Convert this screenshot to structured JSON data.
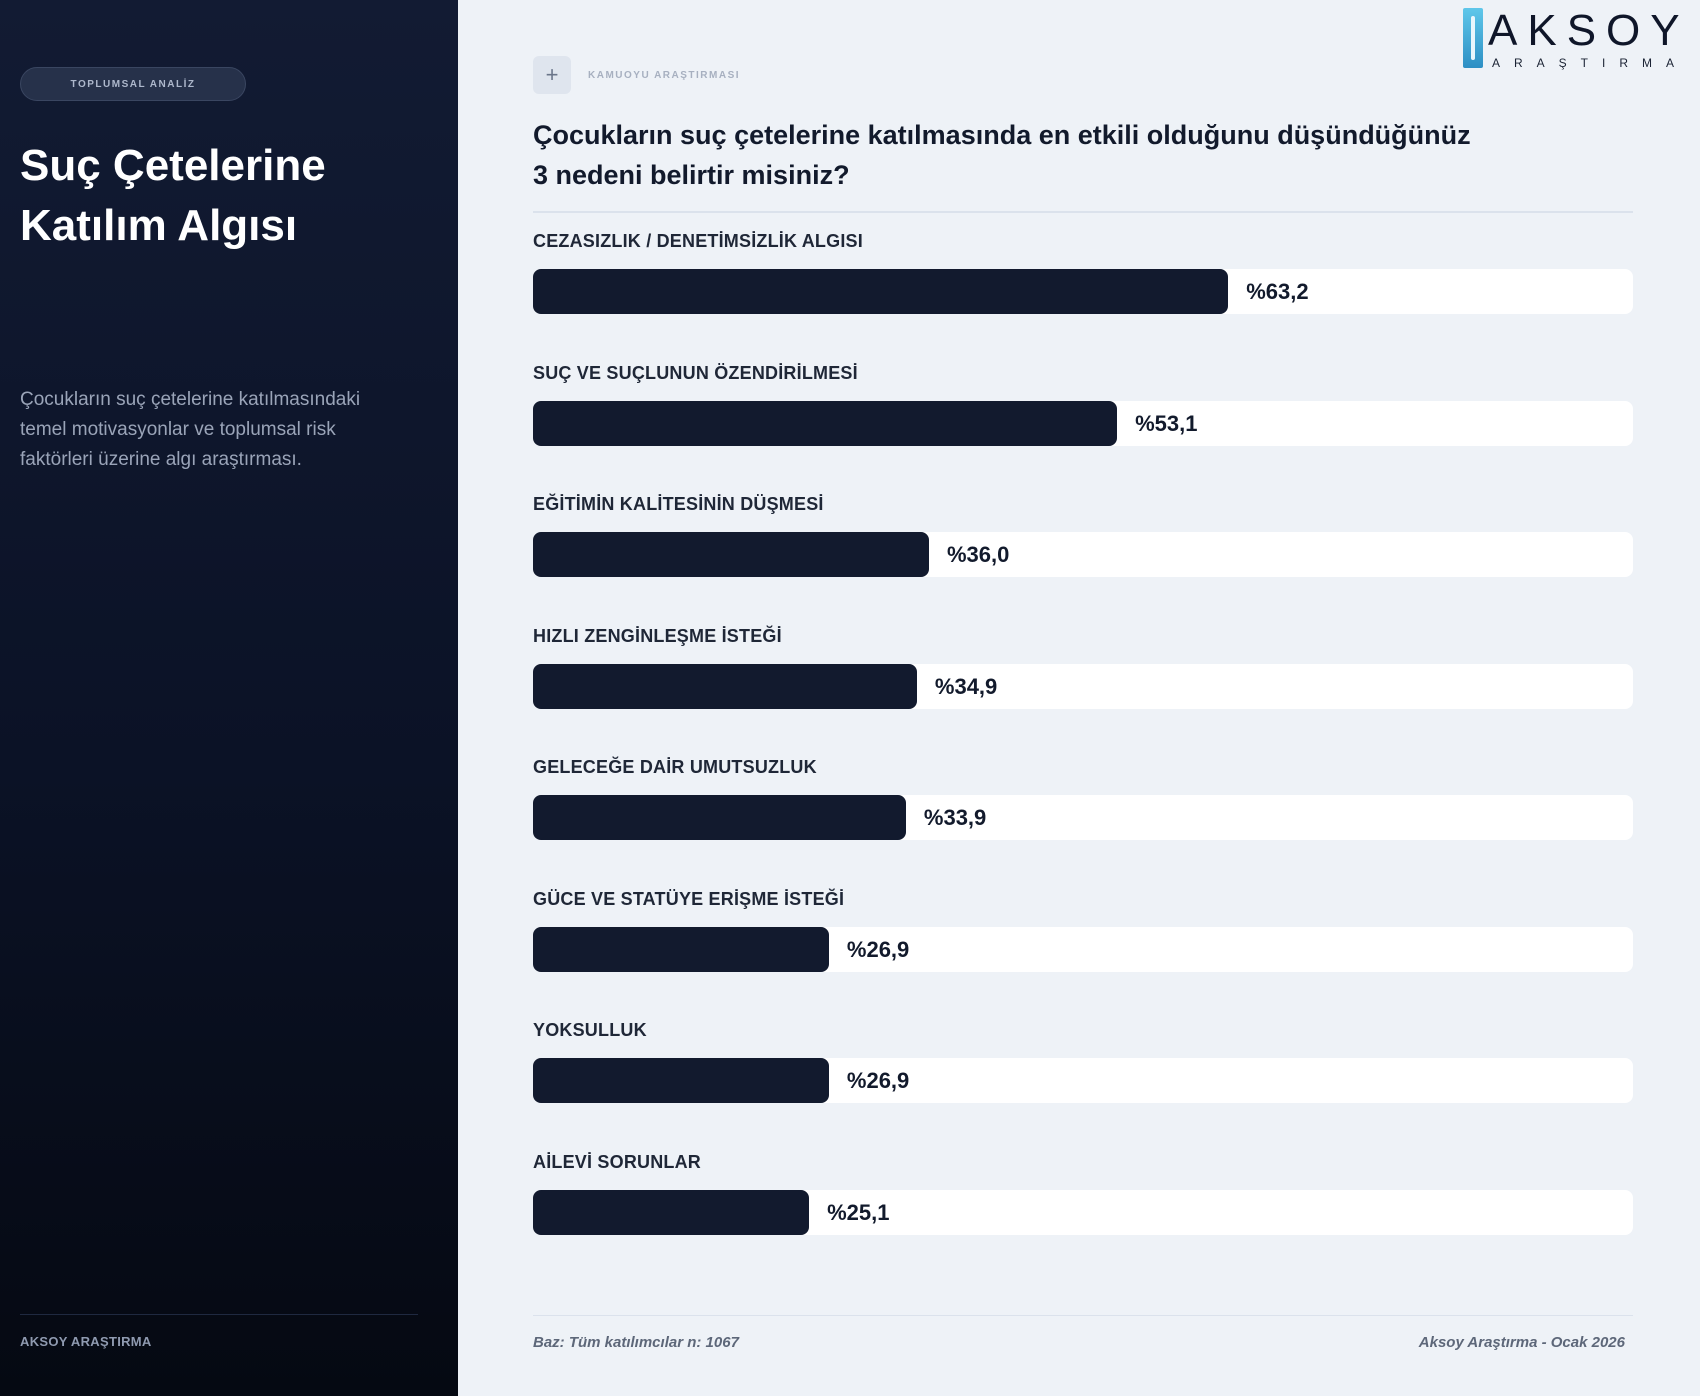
{
  "sidebar": {
    "tag": "TOPLUMSAL ANALİZ",
    "title": "Suç Çetelerine Katılım Algısı",
    "description": "Çocukların suç çetelerine katılmasındaki temel motivasyonlar ve toplumsal risk faktörleri üzerine algı araştırması.",
    "footer_brand": "AKSOY ARAŞTIRMA"
  },
  "header": {
    "logo_name": "AKSOY",
    "logo_sub": "ARAŞTIRMA",
    "kicker": "KAMUOYU ARAŞTIRMASI",
    "kicker_icon": "plus-icon",
    "question": "Çocukların suç çetelerine katılmasında en etkili olduğunu düşündüğünüz 3 nedeni belirtir misiniz?"
  },
  "chart_data": {
    "type": "bar",
    "orientation": "horizontal",
    "categories": [
      "CEZASIZLIK / DENETİMSİZLİK ALGISI",
      "SUÇ VE SUÇLUNUN ÖZENDİRİLMESİ",
      "EĞİTİMİN KALİTESİNİN DÜŞMESİ",
      "HIZLI ZENGİNLEŞME İSTEĞİ",
      "GELECEĞE DAİR UMUTSUZLUK",
      "GÜCE VE STATÜYE ERİŞME İSTEĞİ",
      "YOKSULLUK",
      "AİLEVİ SORUNLAR"
    ],
    "values": [
      63.2,
      53.1,
      36.0,
      34.9,
      33.9,
      26.9,
      26.9,
      25.1
    ],
    "value_labels": [
      "%63,2",
      "%53,1",
      "%36,0",
      "%34,9",
      "%33,9",
      "%26,9",
      "%26,9",
      "%25,1"
    ],
    "xlim": [
      0,
      100
    ],
    "bar_color": "#121a2e",
    "track_color": "#ffffff"
  },
  "footer": {
    "base": "Baz: Tüm katılımcılar n: 1067",
    "source": "Aksoy Araştırma - Ocak 2026"
  }
}
